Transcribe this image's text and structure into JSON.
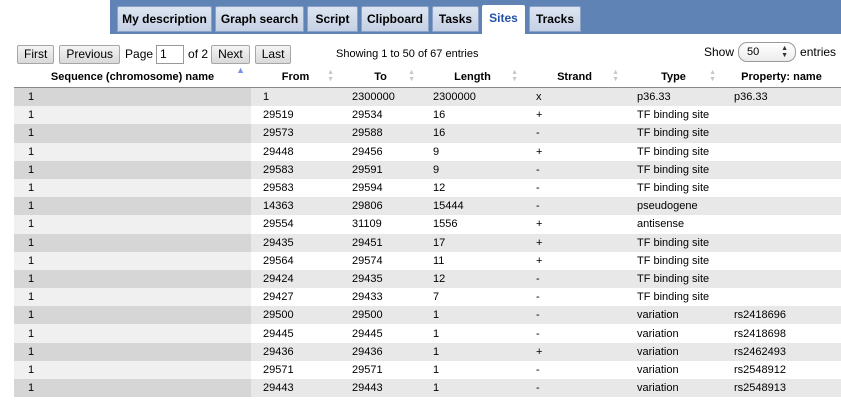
{
  "tabs": [
    {
      "label": "My description"
    },
    {
      "label": "Graph search"
    },
    {
      "label": "Script"
    },
    {
      "label": "Clipboard"
    },
    {
      "label": "Tasks"
    },
    {
      "label": "Sites"
    },
    {
      "label": "Tracks"
    }
  ],
  "active_tab": "Sites",
  "pager": {
    "first": "First",
    "previous": "Previous",
    "page_label": "Page",
    "page_value": "1",
    "of_label": "of 2",
    "next": "Next",
    "last": "Last"
  },
  "info": "Showing 1 to 50 of 67 entries",
  "length_menu": {
    "show": "Show",
    "value": "50",
    "entries": "entries"
  },
  "columns": [
    "Sequence (chromosome) name",
    "From",
    "To",
    "Length",
    "Strand",
    "Type",
    "Property: name"
  ],
  "rows": [
    [
      "1",
      "1",
      "2300000",
      "2300000",
      "x",
      "p36.33",
      "p36.33"
    ],
    [
      "1",
      "29519",
      "29534",
      "16",
      "+",
      "TF binding site",
      ""
    ],
    [
      "1",
      "29573",
      "29588",
      "16",
      "-",
      "TF binding site",
      ""
    ],
    [
      "1",
      "29448",
      "29456",
      "9",
      "+",
      "TF binding site",
      ""
    ],
    [
      "1",
      "29583",
      "29591",
      "9",
      "-",
      "TF binding site",
      ""
    ],
    [
      "1",
      "29583",
      "29594",
      "12",
      "-",
      "TF binding site",
      ""
    ],
    [
      "1",
      "14363",
      "29806",
      "15444",
      "-",
      "pseudogene",
      ""
    ],
    [
      "1",
      "29554",
      "31109",
      "1556",
      "+",
      "antisense",
      ""
    ],
    [
      "1",
      "29435",
      "29451",
      "17",
      "+",
      "TF binding site",
      ""
    ],
    [
      "1",
      "29564",
      "29574",
      "11",
      "+",
      "TF binding site",
      ""
    ],
    [
      "1",
      "29424",
      "29435",
      "12",
      "-",
      "TF binding site",
      ""
    ],
    [
      "1",
      "29427",
      "29433",
      "7",
      "-",
      "TF binding site",
      ""
    ],
    [
      "1",
      "29500",
      "29500",
      "1",
      "-",
      "variation",
      "rs2418696"
    ],
    [
      "1",
      "29445",
      "29445",
      "1",
      "-",
      "variation",
      "rs2418698"
    ],
    [
      "1",
      "29436",
      "29436",
      "1",
      "+",
      "variation",
      "rs2462493"
    ],
    [
      "1",
      "29571",
      "29571",
      "1",
      "-",
      "variation",
      "rs2548912"
    ],
    [
      "1",
      "29443",
      "29443",
      "1",
      "-",
      "variation",
      "rs2548913"
    ]
  ]
}
